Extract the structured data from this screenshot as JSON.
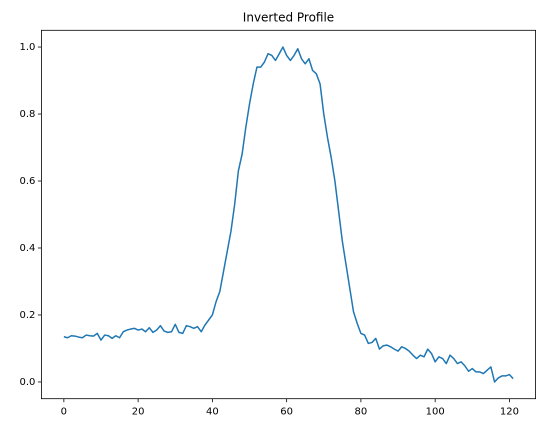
{
  "chart_data": {
    "type": "line",
    "title": "Inverted Profile",
    "x": [
      0,
      1,
      2,
      3,
      4,
      5,
      6,
      7,
      8,
      9,
      10,
      11,
      12,
      13,
      14,
      15,
      16,
      17,
      18,
      19,
      20,
      21,
      22,
      23,
      24,
      25,
      26,
      27,
      28,
      29,
      30,
      31,
      32,
      33,
      34,
      35,
      36,
      37,
      38,
      39,
      40,
      41,
      42,
      43,
      44,
      45,
      46,
      47,
      48,
      49,
      50,
      51,
      52,
      53,
      54,
      55,
      56,
      57,
      58,
      59,
      60,
      61,
      62,
      63,
      64,
      65,
      66,
      67,
      68,
      69,
      70,
      71,
      72,
      73,
      74,
      75,
      76,
      77,
      78,
      79,
      80,
      81,
      82,
      83,
      84,
      85,
      86,
      87,
      88,
      89,
      90,
      91,
      92,
      93,
      94,
      95,
      96,
      97,
      98,
      99,
      100,
      101,
      102,
      103,
      104,
      105,
      106,
      107,
      108,
      109,
      110,
      111,
      112,
      113,
      114,
      115,
      116,
      117,
      118,
      119,
      120,
      121
    ],
    "series": [
      {
        "color": "#1f77b4",
        "values": [
          0.135,
          0.132,
          0.138,
          0.137,
          0.134,
          0.132,
          0.14,
          0.138,
          0.137,
          0.145,
          0.125,
          0.14,
          0.138,
          0.13,
          0.138,
          0.132,
          0.15,
          0.155,
          0.158,
          0.16,
          0.155,
          0.158,
          0.15,
          0.162,
          0.148,
          0.155,
          0.168,
          0.152,
          0.148,
          0.15,
          0.172,
          0.148,
          0.145,
          0.168,
          0.165,
          0.16,
          0.165,
          0.15,
          0.17,
          0.185,
          0.2,
          0.24,
          0.27,
          0.33,
          0.39,
          0.45,
          0.53,
          0.63,
          0.68,
          0.76,
          0.83,
          0.89,
          0.94,
          0.94,
          0.955,
          0.98,
          0.975,
          0.96,
          0.98,
          1.0,
          0.975,
          0.96,
          0.975,
          0.995,
          0.965,
          0.95,
          0.965,
          0.93,
          0.92,
          0.89,
          0.8,
          0.73,
          0.67,
          0.6,
          0.51,
          0.42,
          0.35,
          0.28,
          0.21,
          0.175,
          0.145,
          0.14,
          0.115,
          0.118,
          0.13,
          0.098,
          0.108,
          0.11,
          0.105,
          0.098,
          0.092,
          0.105,
          0.1,
          0.092,
          0.08,
          0.07,
          0.08,
          0.075,
          0.098,
          0.085,
          0.06,
          0.075,
          0.07,
          0.055,
          0.08,
          0.07,
          0.055,
          0.06,
          0.048,
          0.032,
          0.04,
          0.03,
          0.03,
          0.025,
          0.035,
          0.045,
          0.0,
          0.012,
          0.018,
          0.018,
          0.022,
          0.01
        ]
      }
    ],
    "xlim": [
      -6.05,
      127.05
    ],
    "xticks": [
      0,
      20,
      40,
      60,
      80,
      100,
      120
    ],
    "ylim": [
      -0.05,
      1.05
    ],
    "yticks": [
      {
        "value": 0,
        "label": "0.0"
      },
      0.2,
      0.4,
      0.6,
      0.8,
      {
        "value": 1,
        "label": "1.0"
      }
    ],
    "grid": false
  }
}
